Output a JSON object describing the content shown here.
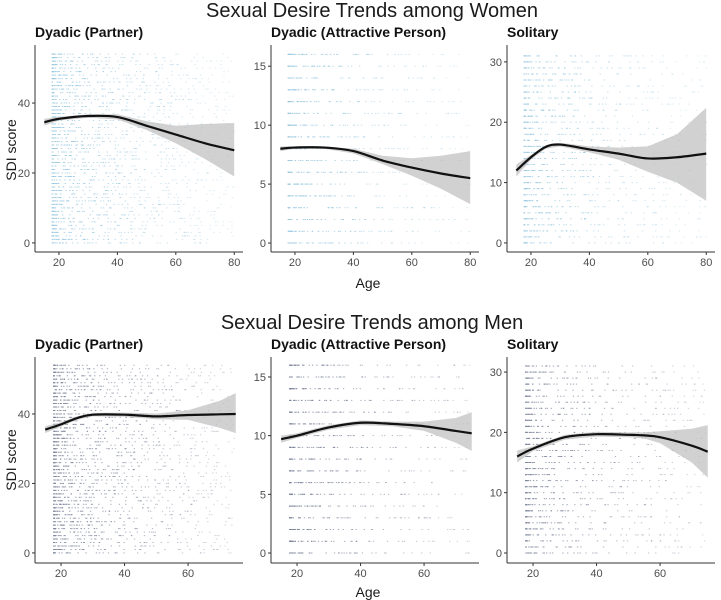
{
  "chart_data": [
    {
      "type": "scatter",
      "title": "Sexual Desire Trends among Women",
      "panel_title": "Dyadic (Partner)",
      "xlabel": "Age",
      "ylabel": "SDI score",
      "xlim": [
        11.8,
        83
      ],
      "ylim": [
        -2.6,
        56.6
      ],
      "xticks": [
        20,
        40,
        60,
        80
      ],
      "yticks": [
        0,
        20,
        40
      ],
      "grid": false,
      "point_color": "#9ecae1",
      "smooth": {
        "x": [
          15,
          20,
          30,
          40,
          50,
          60,
          70,
          80
        ],
        "y": [
          34.5,
          35.5,
          36.3,
          36,
          33.5,
          31,
          28.5,
          26.5
        ],
        "lower": [
          33.5,
          35,
          35.8,
          35.3,
          32.3,
          28.5,
          24,
          19
        ],
        "upper": [
          35.5,
          36,
          36.8,
          36.8,
          34.8,
          33.5,
          34,
          34.3
        ]
      }
    },
    {
      "type": "scatter",
      "panel_title": "Dyadic (Attractive Person)",
      "xlabel": "Age",
      "xlim": [
        11.8,
        83
      ],
      "ylim": [
        -0.76,
        16.8
      ],
      "xticks": [
        20,
        40,
        60,
        80
      ],
      "yticks": [
        0,
        5,
        10,
        15
      ],
      "grid": false,
      "point_color": "#9ecae1",
      "smooth": {
        "x": [
          15,
          20,
          30,
          40,
          50,
          60,
          70,
          80
        ],
        "y": [
          8,
          8.1,
          8.1,
          7.8,
          7,
          6.4,
          5.9,
          5.5
        ],
        "lower": [
          7.8,
          8,
          8,
          7.6,
          6.7,
          5.7,
          4.6,
          3.3
        ],
        "upper": [
          8.2,
          8.2,
          8.2,
          8.0,
          7.4,
          7.2,
          7.4,
          7.8
        ]
      }
    },
    {
      "type": "scatter",
      "panel_title": "Solitary",
      "xlabel": "Age",
      "xlim": [
        11.8,
        83
      ],
      "ylim": [
        -1.5,
        32.8
      ],
      "xticks": [
        20,
        40,
        60,
        80
      ],
      "yticks": [
        0,
        10,
        20,
        30
      ],
      "grid": false,
      "point_color": "#9ecae1",
      "smooth": {
        "x": [
          15,
          20,
          25,
          30,
          40,
          50,
          60,
          70,
          80
        ],
        "y": [
          12,
          14.2,
          15.9,
          16.3,
          15.5,
          14.8,
          14,
          14.2,
          14.8
        ],
        "lower": [
          11,
          13.8,
          15.6,
          16,
          15,
          13.8,
          11.8,
          10,
          7
        ],
        "upper": [
          13,
          14.6,
          16.2,
          16.6,
          16,
          15.8,
          16,
          18,
          22.4
        ]
      }
    },
    {
      "type": "scatter",
      "title": "Sexual Desire Trends among Men",
      "panel_title": "Dyadic (Partner)",
      "xlabel": "Age",
      "ylabel": "SDI score",
      "xlim": [
        11.8,
        77.3
      ],
      "ylim": [
        -2.9,
        56.4
      ],
      "xticks": [
        20,
        40,
        60
      ],
      "yticks": [
        0,
        20,
        40
      ],
      "grid": false,
      "point_color": "#7f879c",
      "smooth": {
        "x": [
          15,
          20,
          25,
          30,
          40,
          50,
          60,
          70,
          75
        ],
        "y": [
          35.5,
          37,
          38.8,
          39.8,
          39.8,
          39.3,
          39.7,
          39.9,
          40
        ],
        "lower": [
          34.5,
          36.4,
          38.3,
          39.3,
          39.2,
          38.5,
          38.3,
          36,
          34.5
        ],
        "upper": [
          36.5,
          37.6,
          39.3,
          40.3,
          40.4,
          40.1,
          41.1,
          43.8,
          46
        ]
      }
    },
    {
      "type": "scatter",
      "panel_title": "Dyadic (Attractive Person)",
      "xlabel": "Age",
      "xlim": [
        11.8,
        77.3
      ],
      "ylim": [
        -0.85,
        16.7
      ],
      "xticks": [
        20,
        40,
        60
      ],
      "yticks": [
        0,
        5,
        10,
        15
      ],
      "grid": false,
      "point_color": "#7f879c",
      "smooth": {
        "x": [
          15,
          20,
          30,
          40,
          50,
          60,
          70,
          75
        ],
        "y": [
          9.7,
          10,
          10.7,
          11.1,
          11,
          10.8,
          10.4,
          10.2
        ],
        "lower": [
          9.4,
          9.8,
          10.5,
          10.9,
          10.8,
          10.4,
          9.4,
          8.7
        ],
        "upper": [
          10,
          10.2,
          10.9,
          11.3,
          11.2,
          11.2,
          11.5,
          12
        ]
      }
    },
    {
      "type": "scatter",
      "panel_title": "Solitary",
      "xlabel": "Age",
      "xlim": [
        11.8,
        77.3
      ],
      "ylim": [
        -1.66,
        32.5
      ],
      "xticks": [
        20,
        40,
        60
      ],
      "yticks": [
        0,
        10,
        20,
        30
      ],
      "grid": false,
      "point_color": "#7f879c",
      "smooth": {
        "x": [
          15,
          20,
          30,
          40,
          50,
          55,
          60,
          70,
          75
        ],
        "y": [
          16,
          17.3,
          19.2,
          19.7,
          19.6,
          19.5,
          19.2,
          17.8,
          16.8
        ],
        "lower": [
          15,
          16.9,
          18.8,
          19.3,
          19.2,
          19,
          18.2,
          15,
          12.5
        ],
        "upper": [
          17,
          17.7,
          19.6,
          20.1,
          20,
          20,
          20.2,
          20.6,
          21.2
        ]
      }
    }
  ],
  "titles": {
    "women": "Sexual Desire Trends among Women",
    "men": "Sexual Desire Trends among Men"
  },
  "axis_labels": {
    "x": "Age",
    "y": "SDI score"
  }
}
